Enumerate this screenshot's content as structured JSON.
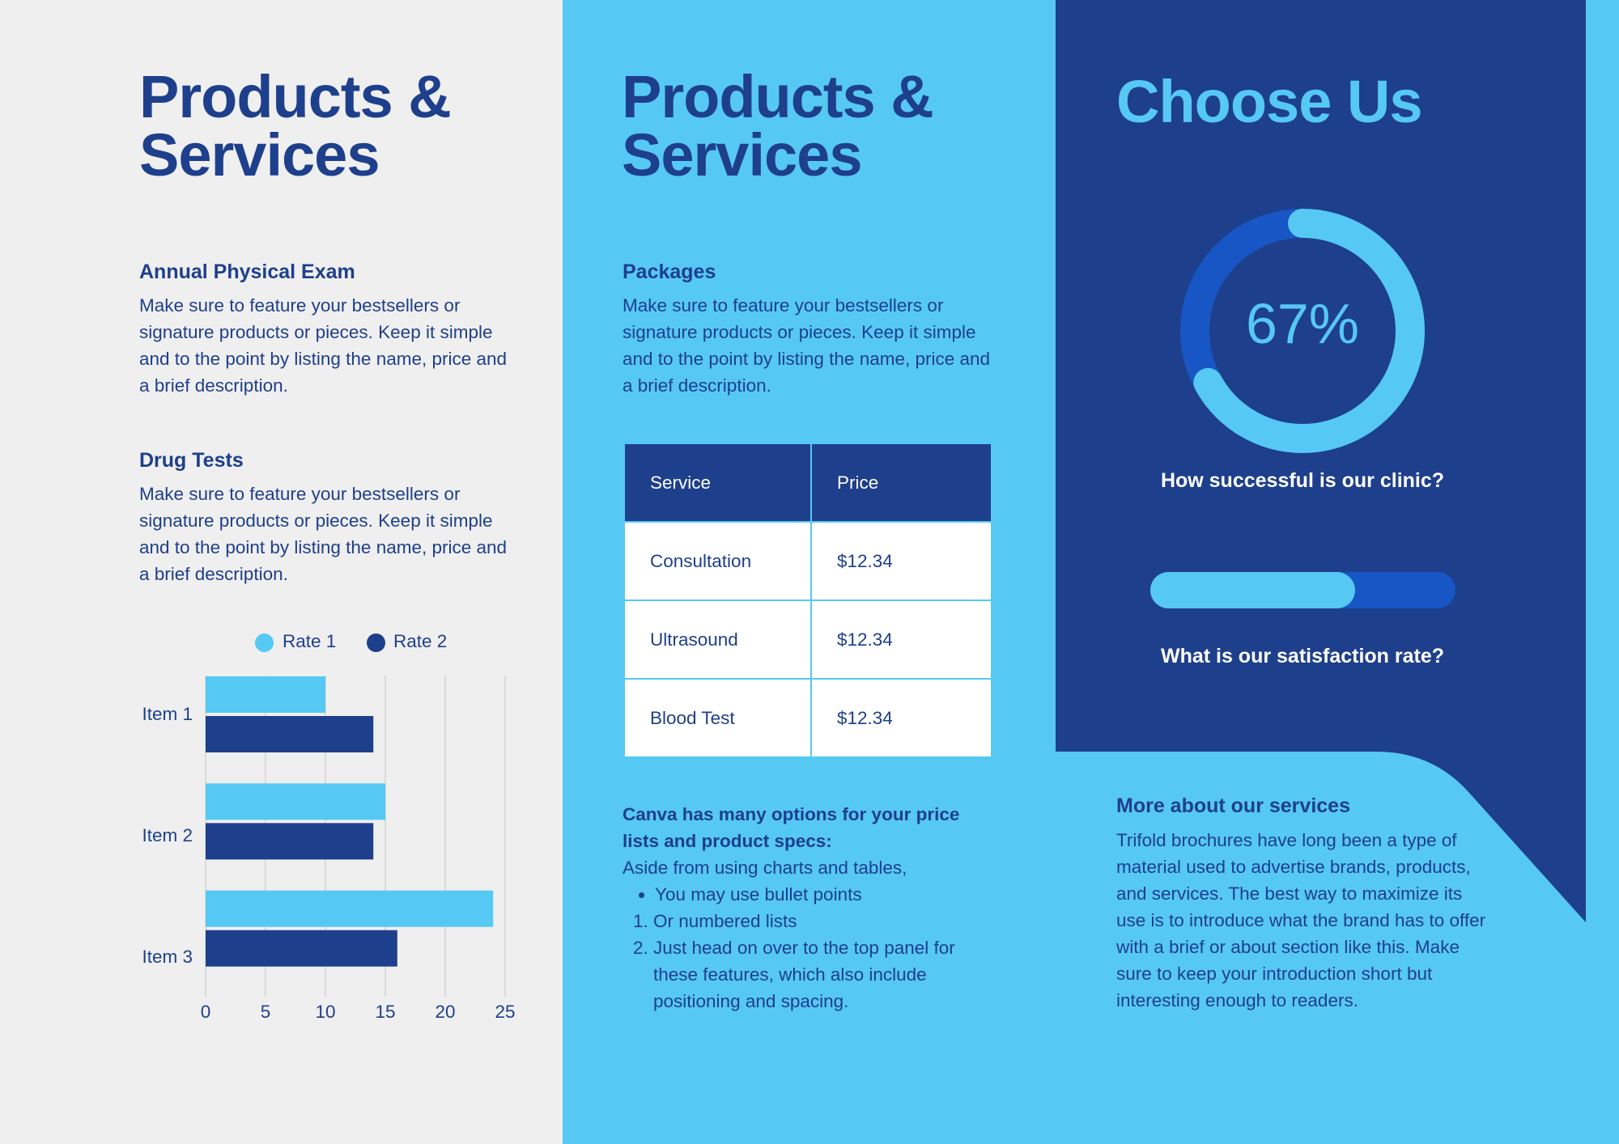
{
  "colors": {
    "navy": "#1e3f8c",
    "sky": "#56c8f4",
    "light_bg": "#efefef",
    "mid_blue": "#1756c4",
    "white": "#ffffff"
  },
  "left": {
    "title": "Products & Services",
    "sections": [
      {
        "heading": "Annual Physical Exam",
        "body": "Make sure to feature your bestsellers or signature products or pieces. Keep it simple and to the point by listing the name, price and a brief description."
      },
      {
        "heading": "Drug Tests",
        "body": "Make sure to feature your bestsellers or signature products or pieces. Keep it simple and to the point by listing the name, price and a brief description."
      }
    ]
  },
  "chart_data": {
    "type": "bar",
    "orientation": "horizontal",
    "categories": [
      "Item 1",
      "Item 2",
      "Item 3"
    ],
    "series": [
      {
        "name": "Rate 1",
        "values": [
          10,
          15,
          24
        ],
        "color": "#56c8f4"
      },
      {
        "name": "Rate 2",
        "values": [
          14,
          14,
          16
        ],
        "color": "#1e3f8c"
      }
    ],
    "xlim": [
      0,
      25
    ],
    "xticks": [
      0,
      5,
      10,
      15,
      20,
      25
    ],
    "grid": true,
    "legend": "top"
  },
  "middle": {
    "title": "Products & Services",
    "packages_heading": "Packages",
    "packages_body": "Make sure to feature your bestsellers or signature products or pieces. Keep it simple and to the point by listing the name, price and a brief description.",
    "table": {
      "headers": [
        "Service",
        "Price"
      ],
      "rows": [
        [
          "Consultation",
          "$12.34"
        ],
        [
          "Ultrasound",
          "$12.34"
        ],
        [
          "Blood Test",
          "$12.34"
        ]
      ]
    },
    "notes": {
      "heading": "Canva has many options for your price lists and product specs:",
      "intro": "Aside from using charts and tables,",
      "bullets": [
        "You may use bullet points"
      ],
      "numbered": [
        "Or numbered lists",
        "Just head on over to the top panel for these features, which also include positioning and spacing."
      ]
    }
  },
  "right": {
    "title": "Choose Us",
    "donut_value": 0.67,
    "donut_label": "67%",
    "donut_caption": "How successful is our clinic?",
    "progress_value": 0.67,
    "progress_caption": "What is our satisfaction rate?",
    "more_heading": "More about our services",
    "more_body": "Trifold brochures have long been a type of material used to advertise brands, products, and services. The best way to maximize its use is to introduce what the brand has to offer with a brief or about section like this. Make sure to keep your introduction short but interesting enough to readers."
  }
}
